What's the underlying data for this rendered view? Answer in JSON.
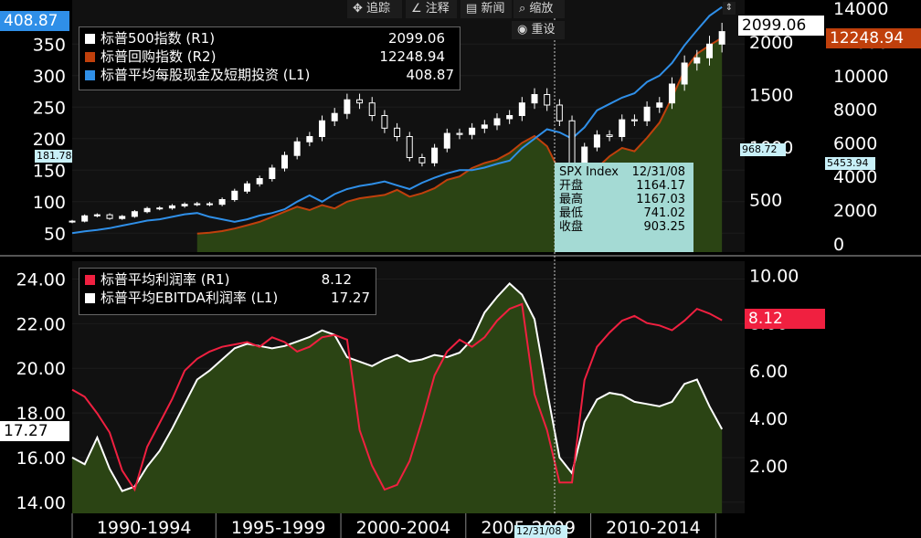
{
  "toolbar": {
    "track_label": "追踪",
    "annotate_label": "注释",
    "news_label": "新闻",
    "zoom_label": "缩放",
    "reset_label": "重设"
  },
  "top_panel": {
    "legend": [
      {
        "label": "标普500指数 (R1)",
        "value": "2099.06",
        "color": "#ffffff"
      },
      {
        "label": "标普回购指数 (R2)",
        "value": "12248.94",
        "color": "#c0400c"
      },
      {
        "label": "标普平均每股现金及短期投资 (L1)",
        "value": "408.87",
        "color": "#2f8fe8"
      }
    ],
    "left_tag": "408.87",
    "right1_tag": "2099.06",
    "right2_tag": "12248.94",
    "cursor_left": "181.78",
    "cursor_r1": "968.72",
    "cursor_r2": "5453.94",
    "tooltip": {
      "title": "SPX Index",
      "date": "12/31/08",
      "rows": [
        {
          "label": "开盘",
          "value": "1164.17"
        },
        {
          "label": "最高",
          "value": "1167.03"
        },
        {
          "label": "最低",
          "value": "741.02"
        },
        {
          "label": "收盘",
          "value": "903.25"
        }
      ]
    }
  },
  "bottom_panel": {
    "legend": [
      {
        "label": "标普平均利润率 (R1)",
        "value": "8.12",
        "color": "#f02040"
      },
      {
        "label": "标普平均EBITDA利润率 (L1)",
        "value": "17.27",
        "color": "#ffffff"
      }
    ],
    "left_tag": "17.27",
    "right_tag": "8.12"
  },
  "x_axis": {
    "period_labels": [
      "1990-1994",
      "1995-1999",
      "2000-2004",
      "2005-2009",
      "2010-2014"
    ],
    "cursor_label": "12/31/08"
  },
  "chart_data": [
    {
      "type": "line",
      "title": "",
      "x_range": [
        1989.0,
        2015.25
      ],
      "axes": {
        "L1": {
          "ticks": [
            50,
            100,
            150,
            200,
            250,
            300,
            350
          ],
          "range": [
            20,
            420
          ]
        },
        "R1": {
          "ticks": [
            500,
            1000,
            1500,
            2000
          ],
          "range": [
            0,
            2400
          ]
        },
        "R2": {
          "ticks": [
            0,
            2000,
            4000,
            6000,
            8000,
            10000,
            12000,
            14000
          ],
          "range": [
            -500,
            14500
          ]
        }
      },
      "series": [
        {
          "name": "标普500指数 (R1)",
          "kind": "candlestick",
          "color": "#ffffff",
          "x": [
            1989.0,
            1989.5,
            1990.0,
            1990.5,
            1991.0,
            1991.5,
            1992.0,
            1992.5,
            1993.0,
            1993.5,
            1994.0,
            1994.5,
            1995.0,
            1995.5,
            1996.0,
            1996.5,
            1997.0,
            1997.5,
            1998.0,
            1998.5,
            1999.0,
            1999.5,
            2000.0,
            2000.5,
            2001.0,
            2001.5,
            2002.0,
            2002.5,
            2003.0,
            2003.5,
            2004.0,
            2004.5,
            2005.0,
            2005.5,
            2006.0,
            2006.5,
            2007.0,
            2007.5,
            2008.0,
            2008.5,
            2009.0,
            2009.5,
            2010.0,
            2010.5,
            2011.0,
            2011.5,
            2012.0,
            2012.5,
            2013.0,
            2013.5,
            2014.0,
            2014.5,
            2015.0
          ],
          "values": [
            295,
            345,
            355,
            320,
            340,
            385,
            415,
            420,
            440,
            455,
            460,
            455,
            500,
            580,
            650,
            700,
            800,
            920,
            1050,
            1100,
            1250,
            1320,
            1450,
            1420,
            1300,
            1180,
            1100,
            900,
            850,
            990,
            1130,
            1120,
            1180,
            1210,
            1270,
            1300,
            1420,
            1500,
            1400,
            1250,
            800,
            1000,
            1115,
            1100,
            1260,
            1250,
            1380,
            1420,
            1600,
            1800,
            1850,
            1980,
            2099.06
          ]
        },
        {
          "name": "标普回购指数 (R2)",
          "kind": "area",
          "color": "#c0400c",
          "x": [
            1994.0,
            1994.5,
            1995.0,
            1995.5,
            1996.0,
            1996.5,
            1997.0,
            1997.5,
            1998.0,
            1998.5,
            1999.0,
            1999.5,
            2000.0,
            2000.5,
            2001.0,
            2001.5,
            2002.0,
            2002.5,
            2003.0,
            2003.5,
            2004.0,
            2004.5,
            2005.0,
            2005.5,
            2006.0,
            2006.5,
            2007.0,
            2007.5,
            2008.0,
            2008.5,
            2009.0,
            2009.5,
            2010.0,
            2010.5,
            2011.0,
            2011.5,
            2012.0,
            2012.5,
            2013.0,
            2013.5,
            2014.0,
            2014.5,
            2015.0
          ],
          "values": [
            600,
            650,
            750,
            900,
            1100,
            1300,
            1600,
            1900,
            2200,
            2000,
            2300,
            2100,
            2500,
            2700,
            2800,
            2900,
            3200,
            2800,
            3000,
            3300,
            3800,
            4000,
            4500,
            4800,
            5000,
            5400,
            6000,
            6400,
            5800,
            4300,
            3300,
            4000,
            4500,
            5200,
            5700,
            5500,
            6300,
            7200,
            8700,
            10300,
            11300,
            11800,
            12248.94
          ]
        },
        {
          "name": "标普平均每股现金及短期投资 (L1)",
          "kind": "line",
          "color": "#2f8fe8",
          "x": [
            1989.0,
            1989.5,
            1990.0,
            1990.5,
            1991.0,
            1991.5,
            1992.0,
            1992.5,
            1993.0,
            1993.5,
            1994.0,
            1994.5,
            1995.0,
            1995.5,
            1996.0,
            1996.5,
            1997.0,
            1997.5,
            1998.0,
            1998.5,
            1999.0,
            1999.5,
            2000.0,
            2000.5,
            2001.0,
            2001.5,
            2002.0,
            2002.5,
            2003.0,
            2003.5,
            2004.0,
            2004.5,
            2005.0,
            2005.5,
            2006.0,
            2006.5,
            2007.0,
            2007.5,
            2008.0,
            2008.5,
            2009.0,
            2009.5,
            2010.0,
            2010.5,
            2011.0,
            2011.5,
            2012.0,
            2012.5,
            2013.0,
            2013.5,
            2014.0,
            2014.5,
            2015.0
          ],
          "values": [
            50,
            53,
            55,
            58,
            62,
            66,
            70,
            72,
            76,
            80,
            82,
            76,
            72,
            68,
            72,
            78,
            82,
            88,
            100,
            110,
            100,
            112,
            120,
            125,
            128,
            132,
            126,
            120,
            130,
            138,
            145,
            150,
            150,
            154,
            160,
            165,
            185,
            200,
            215,
            210,
            200,
            218,
            245,
            255,
            265,
            272,
            290,
            300,
            320,
            348,
            372,
            395,
            408.87
          ]
        }
      ]
    },
    {
      "type": "area",
      "title": "",
      "x_range": [
        1989.0,
        2015.25
      ],
      "axes": {
        "L1": {
          "ticks": [
            14.0,
            16.0,
            18.0,
            20.0,
            22.0,
            24.0
          ],
          "range": [
            13.5,
            24.8
          ]
        },
        "R1": {
          "ticks": [
            2.0,
            4.0,
            6.0,
            8.0,
            10.0
          ],
          "range": [
            0,
            10.6
          ]
        }
      },
      "series": [
        {
          "name": "标普平均利润率 (R1)",
          "kind": "line",
          "color": "#f02040",
          "x": [
            1989.0,
            1989.5,
            1990.0,
            1990.5,
            1991.0,
            1991.5,
            1992.0,
            1992.5,
            1993.0,
            1993.5,
            1994.0,
            1994.5,
            1995.0,
            1995.5,
            1996.0,
            1996.5,
            1997.0,
            1997.5,
            1998.0,
            1998.5,
            1999.0,
            1999.5,
            2000.0,
            2000.5,
            2001.0,
            2001.5,
            2002.0,
            2002.5,
            2003.0,
            2003.5,
            2004.0,
            2004.5,
            2005.0,
            2005.5,
            2006.0,
            2006.5,
            2007.0,
            2007.5,
            2008.0,
            2008.5,
            2009.0,
            2009.5,
            2010.0,
            2010.5,
            2011.0,
            2011.5,
            2012.0,
            2012.5,
            2013.0,
            2013.5,
            2014.0,
            2014.5,
            2015.0
          ],
          "values": [
            5.2,
            4.9,
            4.2,
            3.4,
            1.8,
            1.0,
            2.8,
            3.8,
            4.8,
            6.0,
            6.5,
            6.8,
            7.0,
            7.1,
            7.2,
            7.0,
            7.4,
            7.2,
            6.8,
            7.0,
            7.4,
            7.5,
            7.3,
            3.5,
            2.0,
            1.0,
            1.2,
            2.2,
            3.9,
            5.8,
            6.8,
            7.3,
            7.0,
            7.4,
            8.1,
            8.6,
            8.8,
            5.0,
            3.5,
            1.3,
            1.3,
            5.6,
            7.0,
            7.6,
            8.1,
            8.3,
            8.0,
            7.9,
            7.7,
            8.1,
            8.6,
            8.4,
            8.12
          ]
        },
        {
          "name": "标普平均EBITDA利润率 (L1)",
          "kind": "area",
          "color": "#ffffff",
          "x": [
            1989.0,
            1989.5,
            1990.0,
            1990.5,
            1991.0,
            1991.5,
            1992.0,
            1992.5,
            1993.0,
            1993.5,
            1994.0,
            1994.5,
            1995.0,
            1995.5,
            1996.0,
            1996.5,
            1997.0,
            1997.5,
            1998.0,
            1998.5,
            1999.0,
            1999.5,
            2000.0,
            2000.5,
            2001.0,
            2001.5,
            2002.0,
            2002.5,
            2003.0,
            2003.5,
            2004.0,
            2004.5,
            2005.0,
            2005.5,
            2006.0,
            2006.5,
            2007.0,
            2007.5,
            2008.0,
            2008.5,
            2009.0,
            2009.5,
            2010.0,
            2010.5,
            2011.0,
            2011.5,
            2012.0,
            2012.5,
            2013.0,
            2013.5,
            2014.0,
            2014.5,
            2015.0
          ],
          "values": [
            16.0,
            15.7,
            16.9,
            15.5,
            14.5,
            14.7,
            15.6,
            16.3,
            17.3,
            18.4,
            19.5,
            19.9,
            20.4,
            20.9,
            21.1,
            21.0,
            20.9,
            21.0,
            21.2,
            21.4,
            21.7,
            21.5,
            20.5,
            20.3,
            20.1,
            20.4,
            20.6,
            20.3,
            20.4,
            20.6,
            20.5,
            20.7,
            21.3,
            22.5,
            23.2,
            23.8,
            23.3,
            22.2,
            19.0,
            16.0,
            15.3,
            17.6,
            18.6,
            18.9,
            18.8,
            18.5,
            18.4,
            18.3,
            18.5,
            19.3,
            19.5,
            18.3,
            17.27
          ]
        }
      ]
    }
  ]
}
